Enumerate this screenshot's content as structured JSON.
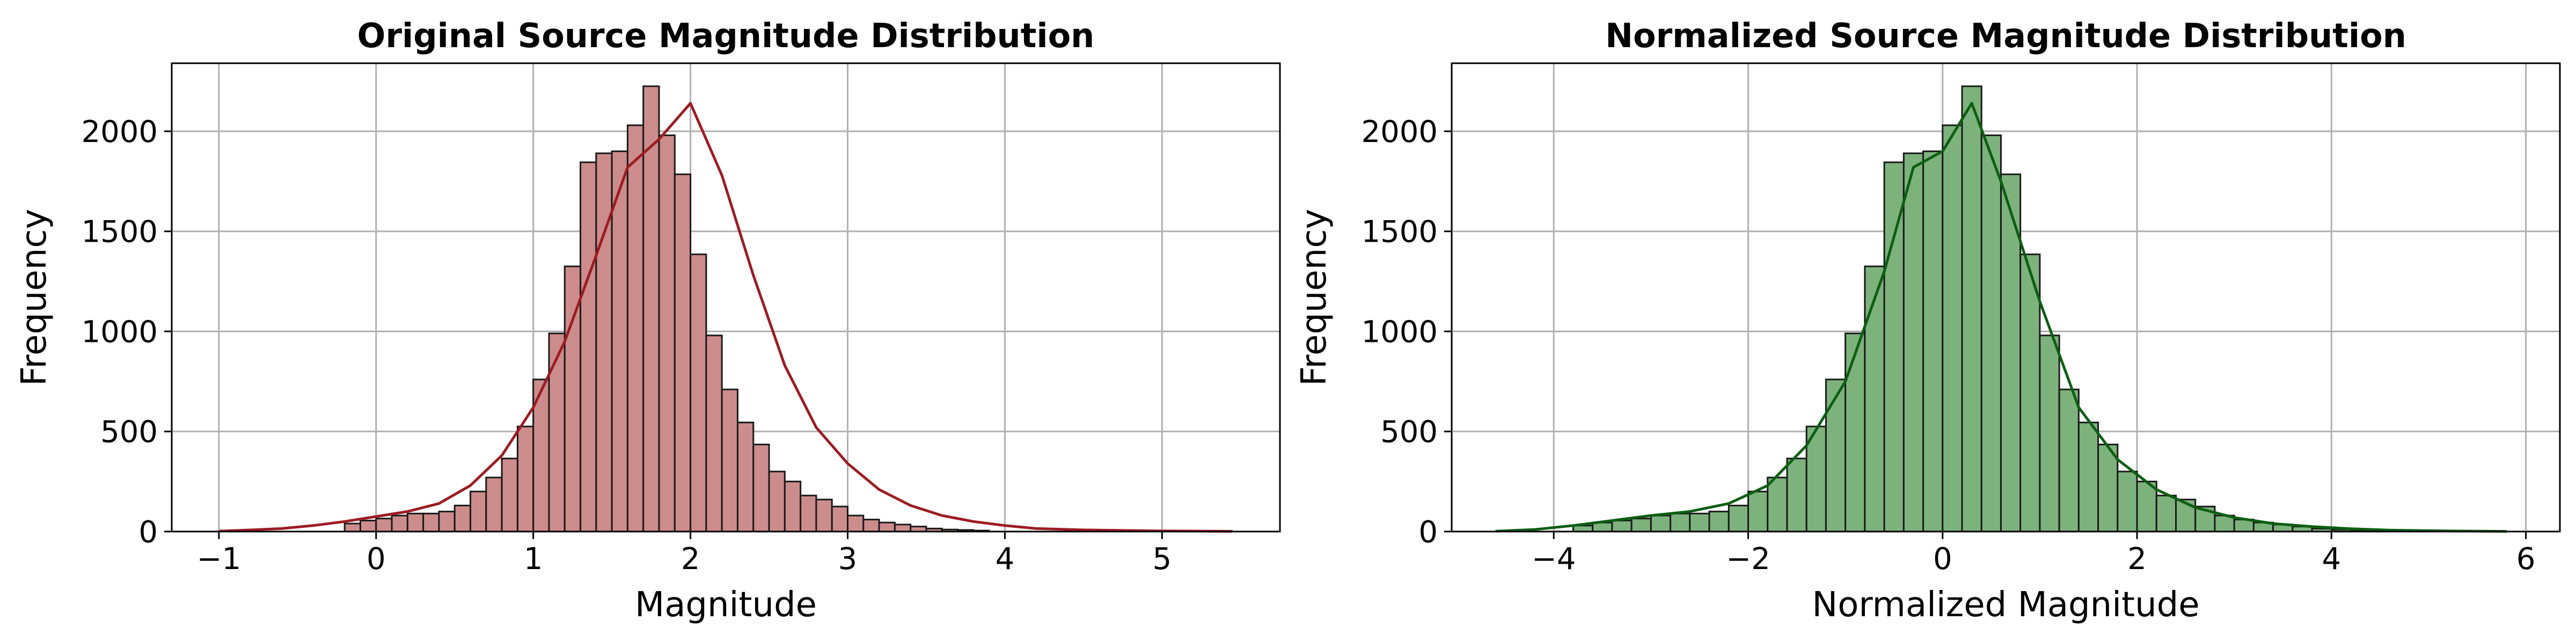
{
  "chart_data": [
    {
      "type": "bar",
      "subtype": "histogram-with-kde",
      "title": "Original Source Magnitude Distribution",
      "xlabel": "Magnitude",
      "ylabel": "Frequency",
      "xlim": [
        -1.3,
        5.75
      ],
      "ylim": [
        0,
        2340
      ],
      "xticks": [
        -1,
        0,
        1,
        2,
        3,
        4,
        5
      ],
      "xtick_labels": [
        "−1",
        "0",
        "1",
        "2",
        "3",
        "4",
        "5"
      ],
      "yticks": [
        0,
        500,
        1000,
        1500,
        2000
      ],
      "ytick_labels": [
        "0",
        "500",
        "1000",
        "1500",
        "2000"
      ],
      "grid": true,
      "bar_color": "#cd8c8c",
      "kde_color": "#9c1c22",
      "bins": {
        "start": -0.2,
        "width": 0.1,
        "values": [
          40,
          55,
          65,
          80,
          90,
          90,
          100,
          130,
          200,
          270,
          365,
          525,
          760,
          990,
          1325,
          1845,
          1890,
          1900,
          2030,
          2225,
          1980,
          1785,
          1385,
          980,
          710,
          545,
          435,
          300,
          250,
          180,
          160,
          125,
          80,
          60,
          45,
          35,
          25,
          15,
          10,
          8,
          5
        ]
      },
      "kde": {
        "x": [
          -1.0,
          -0.8,
          -0.6,
          -0.4,
          -0.2,
          0.0,
          0.2,
          0.4,
          0.6,
          0.8,
          1.0,
          1.2,
          1.4,
          1.6,
          1.8,
          2.0,
          2.2,
          2.4,
          2.6,
          2.8,
          3.0,
          3.2,
          3.4,
          3.6,
          3.8,
          4.0,
          4.2,
          4.5,
          5.0,
          5.45
        ],
        "y": [
          2,
          8,
          15,
          30,
          50,
          75,
          100,
          140,
          230,
          380,
          620,
          950,
          1380,
          1820,
          1960,
          2140,
          1780,
          1280,
          830,
          520,
          340,
          210,
          130,
          80,
          50,
          30,
          15,
          8,
          3,
          1
        ]
      }
    },
    {
      "type": "bar",
      "subtype": "histogram-with-kde",
      "title": "Normalized Source Magnitude Distribution",
      "xlabel": "Normalized Magnitude",
      "ylabel": "Frequency",
      "xlim": [
        -5.05,
        6.35
      ],
      "ylim": [
        0,
        2340
      ],
      "xticks": [
        -4,
        -2,
        0,
        2,
        4,
        6
      ],
      "xtick_labels": [
        "−4",
        "−2",
        "0",
        "2",
        "4",
        "6"
      ],
      "yticks": [
        0,
        500,
        1000,
        1500,
        2000
      ],
      "ytick_labels": [
        "0",
        "500",
        "1000",
        "1500",
        "2000"
      ],
      "grid": true,
      "bar_color": "#7db27d",
      "kde_color": "#0d5e12",
      "bins": {
        "start": -3.8,
        "width": 0.2,
        "values": [
          30,
          45,
          55,
          65,
          80,
          90,
          90,
          100,
          130,
          200,
          270,
          365,
          525,
          760,
          990,
          1325,
          1845,
          1890,
          1900,
          2030,
          2225,
          1980,
          1785,
          1385,
          980,
          710,
          545,
          435,
          300,
          250,
          180,
          160,
          125,
          80,
          60,
          45,
          35,
          25,
          15,
          10,
          8,
          5
        ]
      },
      "kde": {
        "x": [
          -4.6,
          -4.2,
          -3.8,
          -3.4,
          -3.0,
          -2.6,
          -2.2,
          -1.8,
          -1.4,
          -1.0,
          -0.6,
          -0.3,
          0.0,
          0.3,
          0.6,
          1.0,
          1.4,
          1.8,
          2.2,
          2.6,
          3.0,
          3.4,
          3.8,
          4.2,
          4.6,
          5.2,
          5.8
        ],
        "y": [
          2,
          10,
          30,
          55,
          80,
          100,
          140,
          230,
          430,
          750,
          1300,
          1820,
          1900,
          2140,
          1750,
          1150,
          620,
          360,
          210,
          120,
          70,
          40,
          25,
          14,
          7,
          3,
          1
        ]
      }
    }
  ]
}
